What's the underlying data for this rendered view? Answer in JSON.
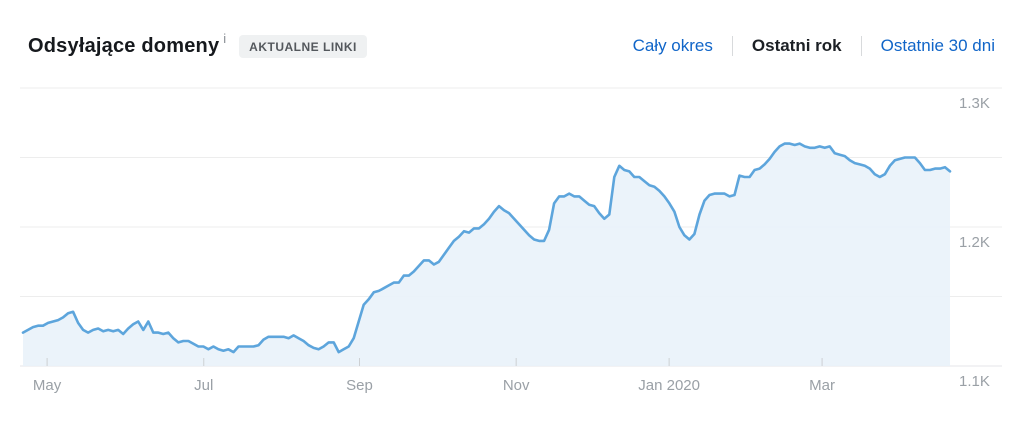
{
  "header": {
    "title": "Odsyłające domeny",
    "info_icon": "i",
    "badge": "AKTUALNE LINKI",
    "tabs": [
      {
        "label": "Cały okres",
        "active": false
      },
      {
        "label": "Ostatni rok",
        "active": true
      },
      {
        "label": "Ostatnie 30 dni",
        "active": false
      }
    ]
  },
  "colors": {
    "line": "#5da5dc",
    "fill": "#e9f2f9",
    "grid": "#ededed",
    "tick": "#cdd0d3",
    "axis_label": "#9aa0a6",
    "link": "#1065c8",
    "active_tab": "#1c2025",
    "badge_bg": "#eff1f2",
    "badge_text": "#54585d",
    "title": "#16191d"
  },
  "chart_data": {
    "type": "area",
    "series_name": "Odsyłające domeny",
    "period_label": "Ostatni rok",
    "x_start": "2019-04-22",
    "x_end": "2020-04-18",
    "point_interval_days": 2,
    "x_ticks": [
      {
        "label": "May",
        "pos": 0.026
      },
      {
        "label": "Jul",
        "pos": 0.195
      },
      {
        "label": "Sep",
        "pos": 0.363
      },
      {
        "label": "Nov",
        "pos": 0.532
      },
      {
        "label": "Jan 2020",
        "pos": 0.697
      },
      {
        "label": "Mar",
        "pos": 0.862
      }
    ],
    "y_ticks": [
      {
        "label": "1.1K",
        "value": 1100
      },
      {
        "label": "1.2K",
        "value": 1200
      },
      {
        "label": "1.3K",
        "value": 1300
      }
    ],
    "ylim": [
      1100,
      1300
    ],
    "grid_values": [
      1100,
      1150,
      1200,
      1250,
      1300
    ],
    "grid": true,
    "legend": false,
    "values": [
      1124,
      1126,
      1128,
      1129,
      1129,
      1131,
      1132,
      1133,
      1135,
      1138,
      1139,
      1131,
      1126,
      1124,
      1126,
      1127,
      1125,
      1126,
      1125,
      1126,
      1123,
      1127,
      1130,
      1132,
      1126,
      1132,
      1124,
      1124,
      1123,
      1124,
      1120,
      1117,
      1118,
      1118,
      1116,
      1114,
      1114,
      1112,
      1114,
      1112,
      1111,
      1112,
      1110,
      1114,
      1114,
      1114,
      1114,
      1115,
      1119,
      1121,
      1121,
      1121,
      1121,
      1120,
      1122,
      1120,
      1118,
      1115,
      1113,
      1112,
      1114,
      1117,
      1117,
      1110,
      1112,
      1114,
      1120,
      1132,
      1144,
      1148,
      1153,
      1154,
      1156,
      1158,
      1160,
      1160,
      1165,
      1165,
      1168,
      1172,
      1176,
      1176,
      1173,
      1175,
      1180,
      1185,
      1190,
      1193,
      1197,
      1196,
      1199,
      1199,
      1202,
      1206,
      1211,
      1215,
      1212,
      1210,
      1206,
      1202,
      1198,
      1194,
      1191,
      1190,
      1190,
      1198,
      1217,
      1222,
      1222,
      1224,
      1222,
      1222,
      1219,
      1216,
      1215,
      1210,
      1206,
      1209,
      1236,
      1244,
      1241,
      1240,
      1236,
      1236,
      1233,
      1230,
      1229,
      1226,
      1222,
      1217,
      1211,
      1200,
      1194,
      1191,
      1195,
      1209,
      1219,
      1223,
      1224,
      1224,
      1224,
      1222,
      1223,
      1237,
      1236,
      1236,
      1241,
      1242,
      1245,
      1249,
      1254,
      1258,
      1260,
      1260,
      1259,
      1260,
      1258,
      1257,
      1257,
      1258,
      1257,
      1258,
      1253,
      1252,
      1251,
      1248,
      1246,
      1245,
      1244,
      1242,
      1238,
      1236,
      1238,
      1244,
      1248,
      1249,
      1250,
      1250,
      1250,
      1246,
      1241,
      1241,
      1242,
      1242,
      1243,
      1240
    ]
  }
}
